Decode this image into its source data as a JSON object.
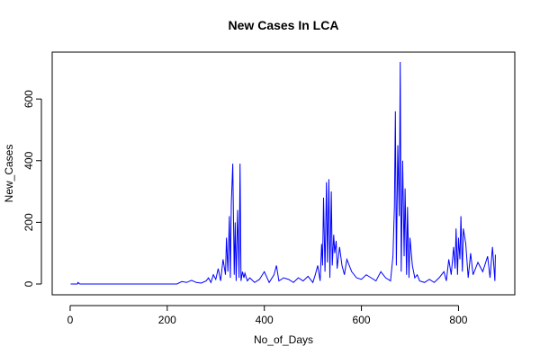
{
  "chart_data": {
    "type": "line",
    "title": "New Cases In LCA",
    "x_label": "No_of_Days",
    "y_label": "New_Cases",
    "x": [
      1,
      15,
      16,
      20,
      100,
      200,
      220,
      230,
      240,
      250,
      260,
      270,
      280,
      285,
      290,
      295,
      300,
      305,
      310,
      315,
      320,
      322,
      325,
      328,
      330,
      332,
      335,
      338,
      340,
      342,
      345,
      348,
      350,
      352,
      355,
      358,
      360,
      365,
      370,
      380,
      390,
      400,
      410,
      420,
      425,
      430,
      440,
      450,
      460,
      470,
      480,
      490,
      500,
      505,
      510,
      515,
      518,
      520,
      522,
      525,
      528,
      530,
      533,
      535,
      538,
      540,
      543,
      545,
      548,
      550,
      555,
      560,
      565,
      570,
      580,
      590,
      600,
      610,
      620,
      630,
      640,
      650,
      660,
      665,
      668,
      670,
      672,
      675,
      678,
      680,
      682,
      685,
      688,
      690,
      693,
      695,
      698,
      700,
      705,
      710,
      715,
      720,
      730,
      740,
      750,
      760,
      770,
      775,
      780,
      785,
      790,
      793,
      795,
      798,
      800,
      803,
      805,
      808,
      810,
      815,
      820,
      825,
      830,
      840,
      850,
      860,
      865,
      870,
      875,
      876
    ],
    "series": [
      {
        "color": "#0000ff",
        "values": [
          0,
          0,
          5,
          0,
          0,
          0,
          0,
          8,
          5,
          12,
          5,
          3,
          10,
          20,
          5,
          30,
          15,
          50,
          10,
          80,
          30,
          150,
          40,
          220,
          20,
          260,
          390,
          30,
          200,
          10,
          240,
          20,
          390,
          10,
          40,
          20,
          35,
          10,
          20,
          5,
          15,
          40,
          5,
          30,
          60,
          10,
          20,
          15,
          5,
          20,
          10,
          25,
          5,
          30,
          60,
          10,
          130,
          60,
          280,
          40,
          330,
          70,
          340,
          20,
          300,
          60,
          160,
          100,
          140,
          50,
          120,
          60,
          30,
          80,
          40,
          20,
          15,
          30,
          20,
          10,
          40,
          20,
          10,
          90,
          250,
          560,
          60,
          450,
          220,
          720,
          40,
          400,
          90,
          310,
          30,
          250,
          20,
          150,
          60,
          20,
          30,
          10,
          5,
          15,
          5,
          20,
          40,
          10,
          80,
          30,
          120,
          50,
          180,
          30,
          150,
          80,
          220,
          40,
          180,
          130,
          20,
          100,
          30,
          70,
          40,
          90,
          20,
          120,
          10,
          95
        ]
      }
    ],
    "xlim": [
      -37,
      916
    ],
    "ylim": [
      -35,
      752
    ],
    "xticks": [
      0,
      200,
      400,
      600,
      800
    ],
    "yticks": [
      0,
      200,
      400,
      600
    ],
    "grid": false
  }
}
